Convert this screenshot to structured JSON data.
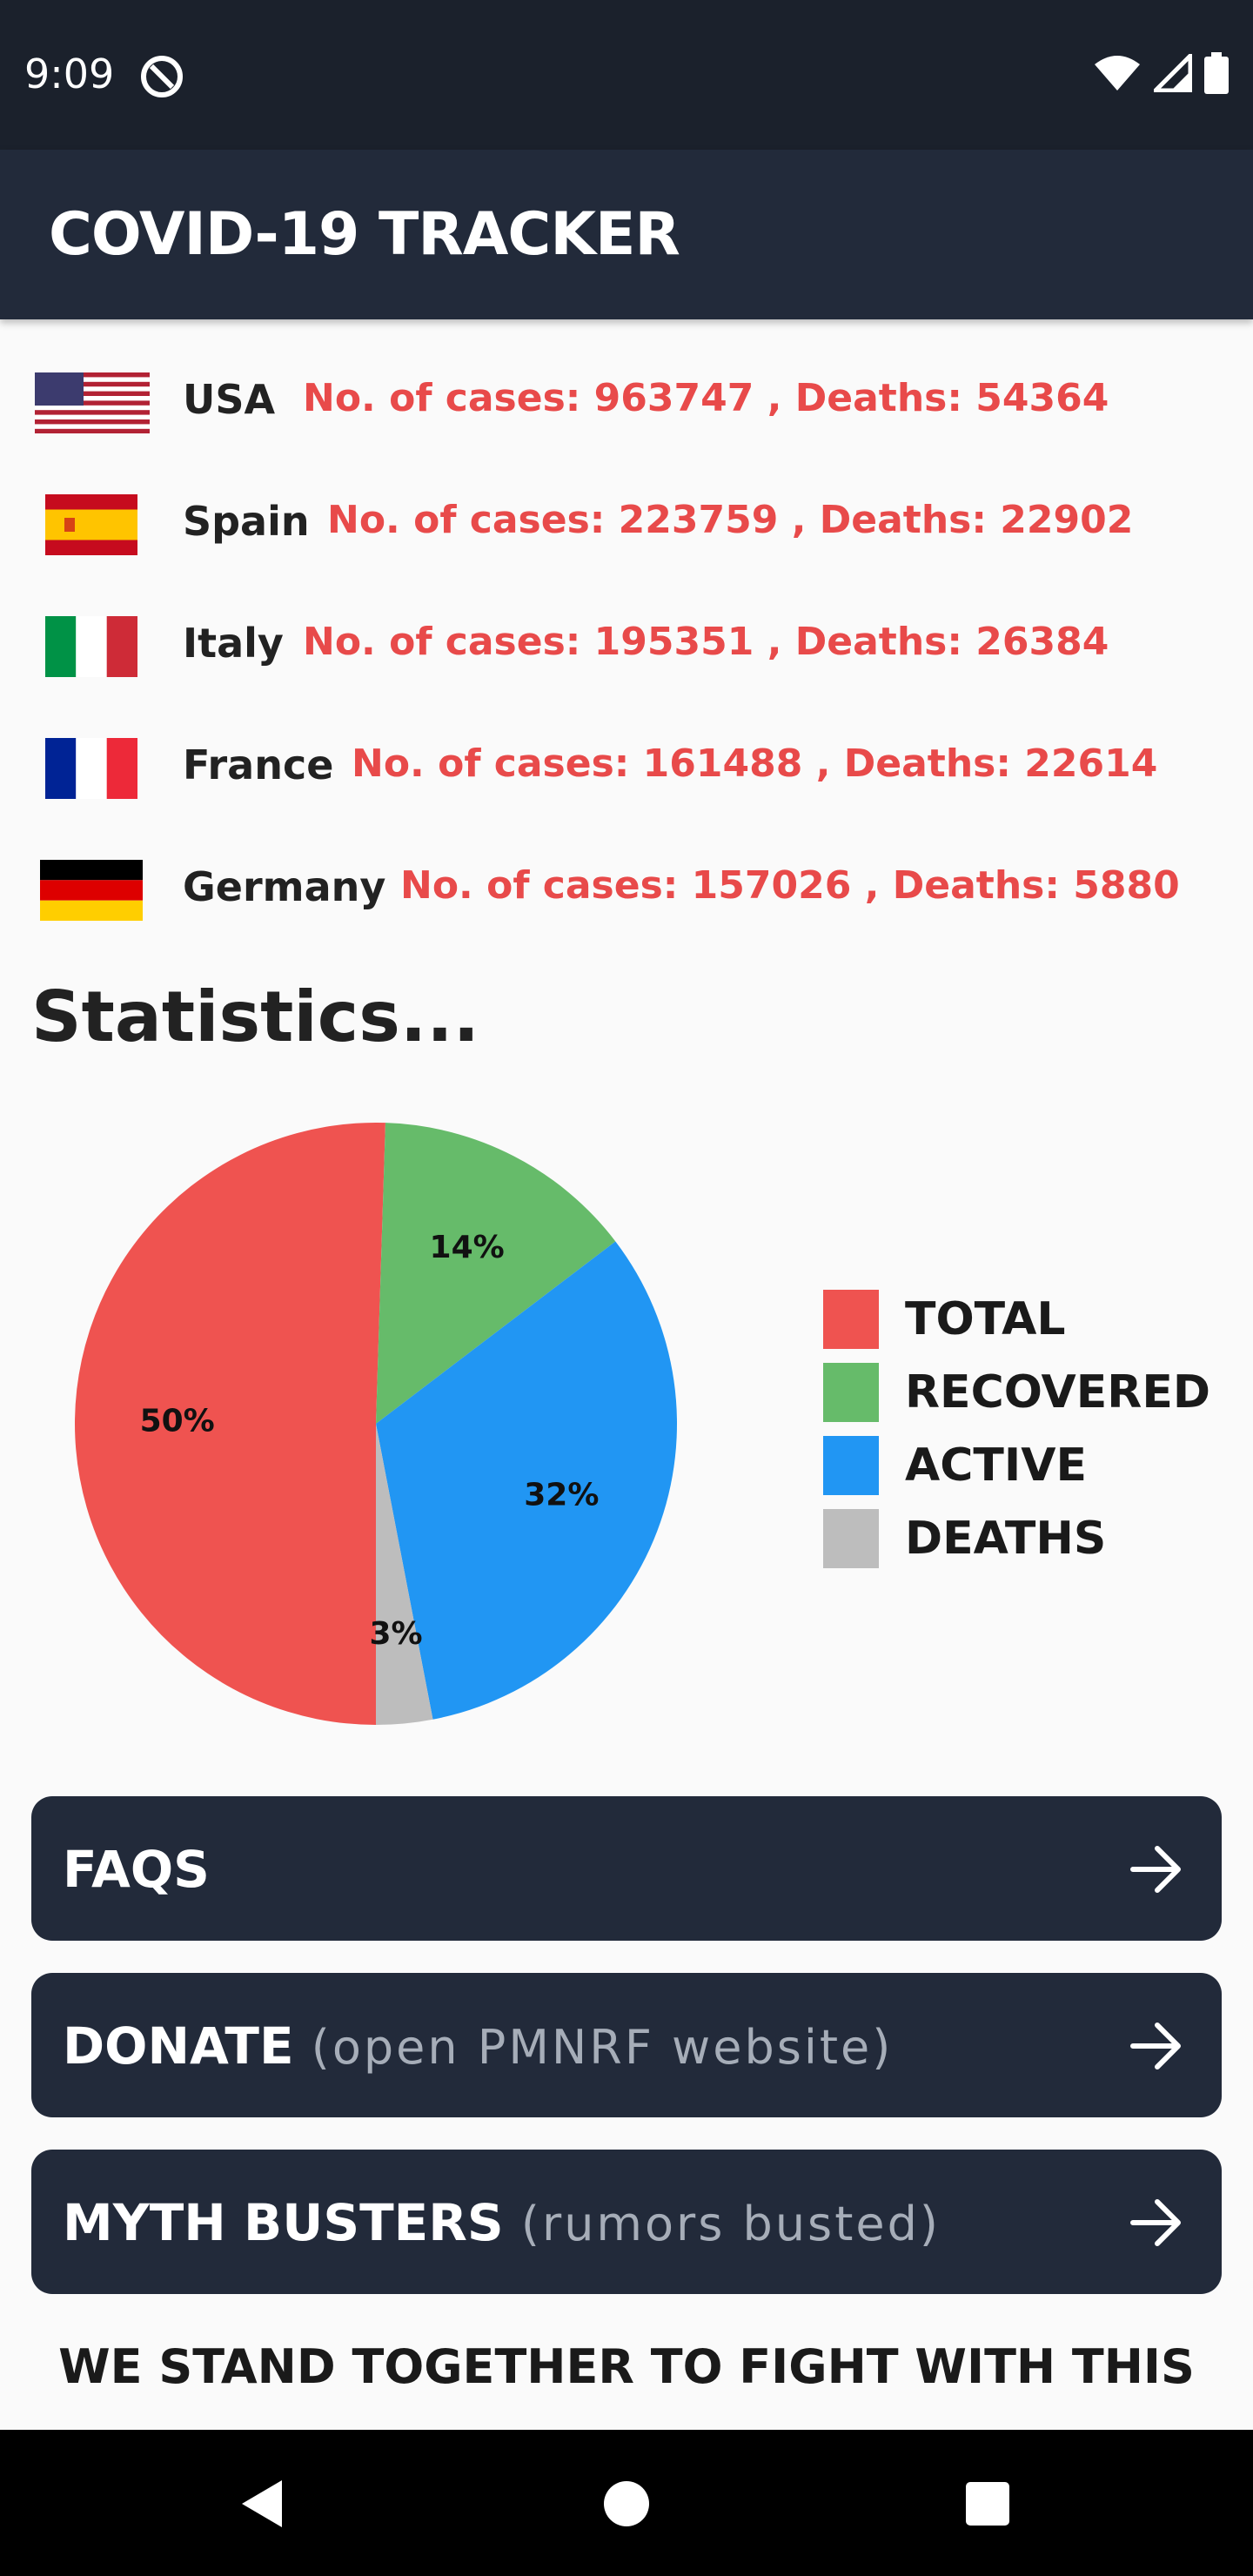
{
  "status_bar": {
    "time": "9:09"
  },
  "app_bar": {
    "title": "COVID-19 TRACKER"
  },
  "countries": [
    {
      "flag": "usa-flag",
      "name": "USA",
      "stats": "No. of cases: 963747  ,  Deaths: 54364"
    },
    {
      "flag": "spain-flag",
      "name": "Spain",
      "stats": "No. of cases: 223759  ,  Deaths: 22902"
    },
    {
      "flag": "italy-flag",
      "name": "Italy",
      "stats": "No. of cases: 195351  ,  Deaths: 26384"
    },
    {
      "flag": "france-flag",
      "name": "France",
      "stats": "No. of cases: 161488  ,  Deaths: 22614"
    },
    {
      "flag": "germany-flag",
      "name": "Germany",
      "stats": "No. of cases: 157026  ,  Deaths: 5880"
    }
  ],
  "statistics": {
    "heading": "Statistics..."
  },
  "chart_data": {
    "type": "pie",
    "title": "",
    "legend_position": "right",
    "slices": [
      {
        "name": "TOTAL",
        "value": 50,
        "label": "50%",
        "color": "#EF5350"
      },
      {
        "name": "RECOVERED",
        "value": 14,
        "label": "14%",
        "color": "#66BB6A"
      },
      {
        "name": "ACTIVE",
        "value": 32,
        "label": "32%",
        "color": "#2196F3"
      },
      {
        "name": "DEATHS",
        "value": 3,
        "label": "3%",
        "color": "#BDBDBD"
      }
    ]
  },
  "buttons": {
    "faqs": {
      "label": "FAQS",
      "sub": ""
    },
    "donate": {
      "label": "DONATE",
      "sub": "(open PMNRF website)"
    },
    "myth": {
      "label": "MYTH BUSTERS",
      "sub": "(rumors busted)"
    }
  },
  "footer": {
    "slogan": "WE STAND TOGETHER TO FIGHT WITH THIS"
  },
  "colors": {
    "header": "#222A3A",
    "status_bar": "#1B212C",
    "stat_red": "#E84A4A",
    "background": "#FAFAFA"
  }
}
